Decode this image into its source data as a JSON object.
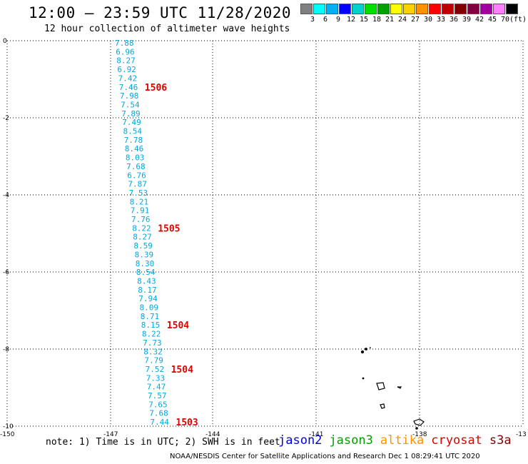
{
  "title": "12:00 – 23:59 UTC 11/28/2020",
  "subtitle": "12 hour collection of altimeter wave heights",
  "colorbar": {
    "colors": [
      "#808080",
      "#00ffff",
      "#00b0f0",
      "#0000ff",
      "#00d0d0",
      "#00e000",
      "#00a000",
      "#ffff00",
      "#ffd000",
      "#ff9000",
      "#ff0000",
      "#c00000",
      "#800000",
      "#800040",
      "#a000a0",
      "#ff80ff",
      "#000000"
    ],
    "labels": [
      "3",
      "6",
      "9",
      "12",
      "15",
      "18",
      "21",
      "24",
      "27",
      "30",
      "33",
      "36",
      "39",
      "42",
      "45",
      "70",
      "(ft)"
    ]
  },
  "lat_labels": [
    "0",
    "-2",
    "-4",
    "-6",
    "-8",
    "-10"
  ],
  "lon_labels": [
    "-150",
    "-147",
    "-144",
    "-141",
    "-138",
    "-13"
  ],
  "swh_values": [
    "7.88",
    "6.96",
    "8.27",
    "6.92",
    "7.42",
    "7.46",
    "7.98",
    "7.54",
    "7.89",
    "7.49",
    "8.54",
    "7.78",
    "8.46",
    "8.03",
    "7.68",
    "6.76",
    "7.87",
    "7.53",
    "8.21",
    "7.91",
    "7.76",
    "8.22",
    "8.27",
    "8.59",
    "8.39",
    "8.30",
    "8.54",
    "8.43",
    "8.17",
    "7.94",
    "8.09",
    "8.71",
    "8.15",
    "8.22",
    "7.73",
    "8.32",
    "7.79",
    "7.52",
    "7.33",
    "7.47",
    "7.57",
    "7.65",
    "7.68",
    "7.44"
  ],
  "pass_labels": [
    {
      "text": "1506",
      "index": 5
    },
    {
      "text": "1505",
      "index": 21
    },
    {
      "text": "1504",
      "index": 32
    },
    {
      "text": "1504",
      "index": 37
    },
    {
      "text": "1503",
      "index": 43
    }
  ],
  "note": "note: 1) Time is in UTC; 2) SWH is in feet",
  "legend": [
    {
      "name": "jason2",
      "color": "#0000e0"
    },
    {
      "name": "jason3",
      "color": "#00a000"
    },
    {
      "name": "altika",
      "color": "#ff9000"
    },
    {
      "name": "cryosat",
      "color": "#e00000"
    },
    {
      "name": "s3a",
      "color": "#800000"
    }
  ],
  "credit": "NOAA/NESDIS Center for Satellite Applications and Research    Dec  1 08:29:41 UTC 2020"
}
